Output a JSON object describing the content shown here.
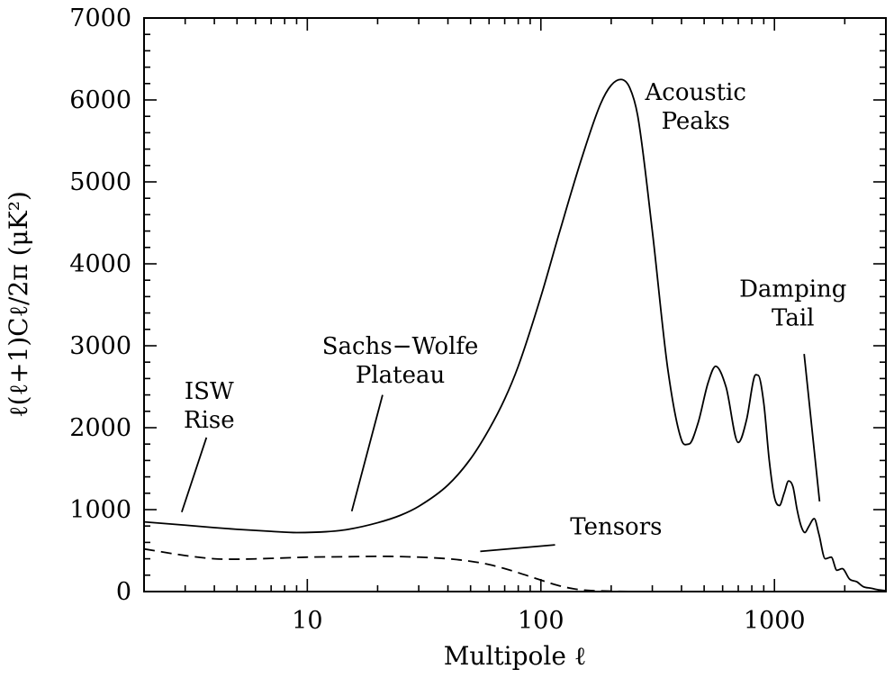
{
  "chart_data": {
    "type": "line",
    "xscale": "log",
    "xlim": [
      2,
      3000
    ],
    "ylim": [
      0,
      7000
    ],
    "xlabel": "Multipole ℓ",
    "ylabel": "ℓ(ℓ+1)Cℓ/2π (μK²)",
    "x_ticks": [
      10,
      100,
      1000
    ],
    "x_tick_labels": [
      "10",
      "100",
      "1000"
    ],
    "y_ticks": [
      0,
      1000,
      2000,
      3000,
      4000,
      5000,
      6000,
      7000
    ],
    "y_tick_labels": [
      "0",
      "1000",
      "2000",
      "3000",
      "4000",
      "5000",
      "6000",
      "7000"
    ],
    "grid": false,
    "legend": "none",
    "series": [
      {
        "style": "solid",
        "x": [
          2,
          3,
          4,
          5,
          7,
          9,
          12,
          15,
          20,
          25,
          30,
          40,
          50,
          60,
          70,
          80,
          100,
          120,
          150,
          180,
          200,
          220,
          240,
          260,
          300,
          350,
          400,
          430,
          470,
          520,
          560,
          620,
          700,
          760,
          820,
          850,
          900,
          950,
          1000,
          1050,
          1100,
          1150,
          1200,
          1250,
          1300,
          1350,
          1400,
          1480,
          1550,
          1650,
          1750,
          1850,
          1950,
          2100,
          2250,
          2400,
          2600,
          2800,
          3000
        ],
        "y": [
          850,
          810,
          780,
          760,
          735,
          720,
          730,
          760,
          840,
          930,
          1040,
          1300,
          1620,
          1980,
          2350,
          2750,
          3600,
          4380,
          5300,
          5950,
          6180,
          6250,
          6150,
          5800,
          4400,
          2700,
          1850,
          1800,
          2050,
          2550,
          2750,
          2500,
          1820,
          2100,
          2620,
          2640,
          2300,
          1600,
          1150,
          1050,
          1200,
          1350,
          1280,
          1000,
          800,
          720,
          790,
          890,
          700,
          400,
          420,
          260,
          280,
          150,
          120,
          60,
          40,
          20,
          10
        ]
      },
      {
        "style": "dashed",
        "x": [
          2,
          3,
          4,
          5,
          7,
          10,
          15,
          20,
          30,
          40,
          50,
          60,
          70,
          80,
          100,
          120,
          150,
          200,
          300,
          500
        ],
        "y": [
          520,
          440,
          400,
          395,
          405,
          420,
          425,
          430,
          420,
          400,
          370,
          330,
          280,
          230,
          140,
          70,
          20,
          5,
          0,
          0
        ]
      }
    ],
    "annotations": [
      {
        "lines": [
          "ISW",
          "Rise"
        ],
        "label_x": 3.8,
        "label_y": 2350,
        "pointer_from": [
          3.7,
          1880
        ],
        "pointer_to": [
          2.9,
          970
        ]
      },
      {
        "lines": [
          "Sachs−Wolfe",
          "Plateau"
        ],
        "label_x": 25,
        "label_y": 2900,
        "pointer_from": [
          21,
          2400
        ],
        "pointer_to": [
          15.5,
          980
        ]
      },
      {
        "lines": [
          "Acoustic",
          "Peaks"
        ],
        "label_x": 460,
        "label_y": 6000,
        "pointer_from": null,
        "pointer_to": null
      },
      {
        "lines": [
          "Damping",
          "Tail"
        ],
        "label_x": 1200,
        "label_y": 3600,
        "pointer_from": [
          1340,
          2900
        ],
        "pointer_to": [
          1560,
          1100
        ]
      },
      {
        "lines": [
          "Tensors"
        ],
        "label_x": 210,
        "label_y": 700,
        "pointer_from": [
          115,
          570
        ],
        "pointer_to": [
          55,
          490
        ]
      }
    ]
  }
}
